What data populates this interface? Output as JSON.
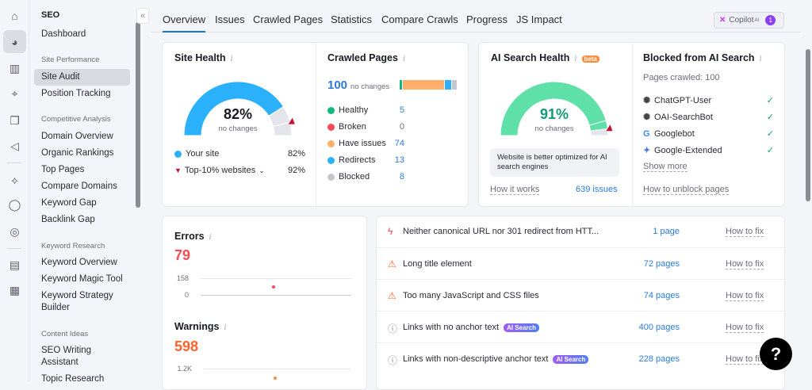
{
  "rail": {
    "icons": [
      "home-icon",
      "seo-icon",
      "bar-chart-icon",
      "location-pin-icon",
      "copy-icon",
      "megaphone-icon",
      "ai-icon",
      "chat-icon",
      "cursor-target-icon",
      "report-chart-icon",
      "apps-grid-icon"
    ]
  },
  "sidebar": {
    "title": "SEO",
    "dashboard": "Dashboard",
    "groups": [
      {
        "label": "Site Performance",
        "items": [
          "Site Audit",
          "Position Tracking"
        ]
      },
      {
        "label": "Competitive Analysis",
        "items": [
          "Domain Overview",
          "Organic Rankings",
          "Top Pages",
          "Compare Domains",
          "Keyword Gap",
          "Backlink Gap"
        ]
      },
      {
        "label": "Keyword Research",
        "items": [
          "Keyword Overview",
          "Keyword Magic Tool",
          "Keyword Strategy Builder"
        ]
      },
      {
        "label": "Content Ideas",
        "items": [
          "SEO Writing Assistant",
          "Topic Research"
        ]
      }
    ],
    "selected": "Site Audit",
    "collapse": "«"
  },
  "tabs": [
    "Overview",
    "Issues",
    "Crawled Pages",
    "Statistics",
    "Compare Crawls",
    "Progress",
    "JS Impact"
  ],
  "active_tab": "Overview",
  "copilot": {
    "label": "Copilot",
    "sup": "AI",
    "count": "1"
  },
  "site_health": {
    "title": "Site Health",
    "value": 82,
    "value_label": "82%",
    "sub": "no changes",
    "top10": 92,
    "legend": [
      {
        "label": "Your site",
        "value": "82%"
      },
      {
        "label": "Top-10% websites",
        "value": "92%"
      }
    ],
    "color": "#2bb1fb"
  },
  "crawled": {
    "title": "Crawled Pages",
    "total": "100",
    "sub": "no changes",
    "rows": [
      {
        "label": "Healthy",
        "value": 5,
        "color": "#10b981"
      },
      {
        "label": "Broken",
        "value": 0,
        "color": "#ff4953"
      },
      {
        "label": "Have issues",
        "value": 74,
        "color": "#ffae6b"
      },
      {
        "label": "Redirects",
        "value": 13,
        "color": "#2bb1fb"
      },
      {
        "label": "Blocked",
        "value": 8,
        "color": "#c4c7cf"
      }
    ]
  },
  "ai_health": {
    "title": "AI Search Health",
    "badge": "beta",
    "value": 91,
    "value_label": "91%",
    "sub": "no changes",
    "top10": 96,
    "color": "#5ee0a8",
    "note": "Website is better optimized for AI search engines",
    "how": "How it works",
    "issues": "639 issues"
  },
  "blocked": {
    "title": "Blocked from AI Search",
    "pages": "Pages crawled: 100",
    "bots": [
      {
        "name": "ChatGPT-User",
        "icon": "openai-icon"
      },
      {
        "name": "OAI-SearchBot",
        "icon": "openai-icon"
      },
      {
        "name": "Googlebot",
        "icon": "google-icon"
      },
      {
        "name": "Google-Extended",
        "icon": "gemini-icon"
      }
    ],
    "show_more": "Show more",
    "unblock": "How to unblock pages"
  },
  "errors": {
    "title": "Errors",
    "value": "79",
    "ymax": "158",
    "ymin": "0"
  },
  "warnings": {
    "title": "Warnings",
    "value": "598",
    "ymax": "1.2K"
  },
  "issues": [
    {
      "type": "error",
      "text": "Neither canonical URL nor 301 redirect from HTT...",
      "pages": "1 page",
      "fix": "How to fix"
    },
    {
      "type": "warning",
      "text": "Long title element",
      "pages": "72 pages",
      "fix": "How to fix"
    },
    {
      "type": "warning",
      "text": "Too many JavaScript and CSS files",
      "pages": "74 pages",
      "fix": "How to fix"
    },
    {
      "type": "notice",
      "text": "Links with no anchor text",
      "tag": "AI Search",
      "pages": "400 pages",
      "fix": "How to fix"
    },
    {
      "type": "notice",
      "text": "Links with non-descriptive anchor text",
      "tag": "AI Search",
      "pages": "228 pages",
      "fix": "How to fix"
    }
  ],
  "help": "?"
}
